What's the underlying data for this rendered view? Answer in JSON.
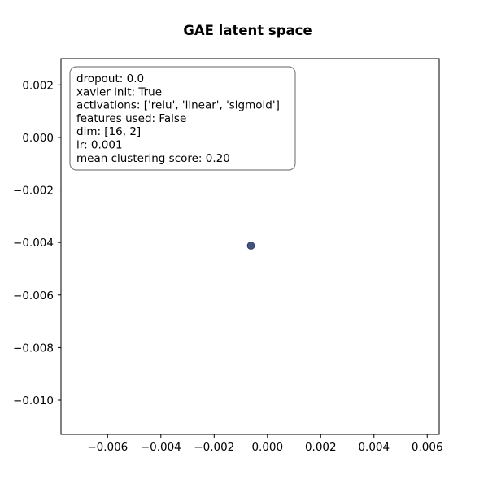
{
  "chart_data": {
    "type": "scatter",
    "title": "GAE latent space",
    "xlabel": "",
    "ylabel": "",
    "xlim": [
      -0.00775,
      0.00645
    ],
    "ylim": [
      -0.0113,
      0.003
    ],
    "x_ticks": [
      -0.006,
      -0.004,
      -0.002,
      0.0,
      0.002,
      0.004,
      0.006
    ],
    "y_ticks": [
      0.002,
      0.0,
      -0.002,
      -0.004,
      -0.006,
      -0.008,
      -0.01
    ],
    "x_tick_labels": [
      "−0.006",
      "−0.004",
      "−0.002",
      "0.000",
      "0.002",
      "0.004",
      "0.006"
    ],
    "y_tick_labels": [
      "0.002",
      "0.000",
      "−0.002",
      "−0.004",
      "−0.006",
      "−0.008",
      "−0.010"
    ],
    "grid": false,
    "points": [
      {
        "x": -0.00062,
        "y": -0.00412,
        "color": "#3b4a7a"
      }
    ],
    "info_box": {
      "placement": "top-left",
      "lines": [
        "dropout: 0.0",
        "xavier init: True",
        "activations: ['relu', 'linear', 'sigmoid']",
        "features used: False",
        "dim: [16, 2]",
        "lr: 0.001",
        "mean clustering score: 0.20"
      ]
    }
  }
}
